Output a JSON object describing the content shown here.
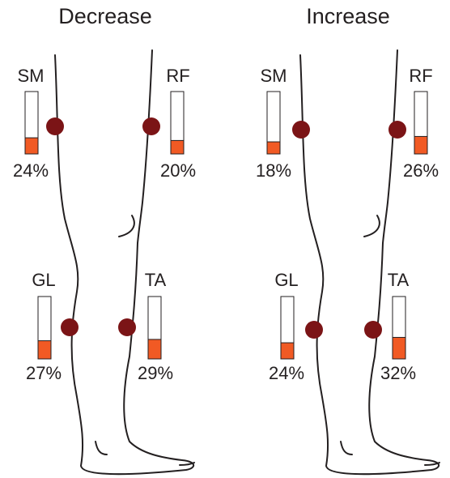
{
  "panels": [
    {
      "title": "Decrease",
      "muscles": [
        {
          "label": "SM",
          "value": 24,
          "value_label": "24%"
        },
        {
          "label": "RF",
          "value": 20,
          "value_label": "20%"
        },
        {
          "label": "GL",
          "value": 27,
          "value_label": "27%"
        },
        {
          "label": "TA",
          "value": 29,
          "value_label": "29%"
        }
      ]
    },
    {
      "title": "Increase",
      "muscles": [
        {
          "label": "SM",
          "value": 18,
          "value_label": "18%"
        },
        {
          "label": "RF",
          "value": 26,
          "value_label": "26%"
        },
        {
          "label": "GL",
          "value": 24,
          "value_label": "24%"
        },
        {
          "label": "TA",
          "value": 32,
          "value_label": "32%"
        }
      ]
    }
  ]
}
